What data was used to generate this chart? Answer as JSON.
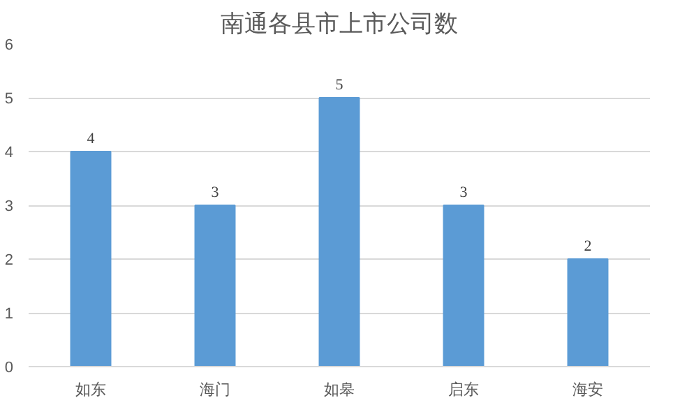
{
  "chart_data": {
    "type": "bar",
    "title": "南通各县市上市公司数",
    "categories": [
      "如东",
      "海门",
      "如皋",
      "启东",
      "海安"
    ],
    "values": [
      4,
      3,
      5,
      3,
      2
    ],
    "color": "#5b9bd5",
    "ylim": [
      0,
      6
    ],
    "yticks": [
      0,
      1,
      2,
      3,
      4,
      5,
      6
    ],
    "grid": "y",
    "data_labels": true
  }
}
